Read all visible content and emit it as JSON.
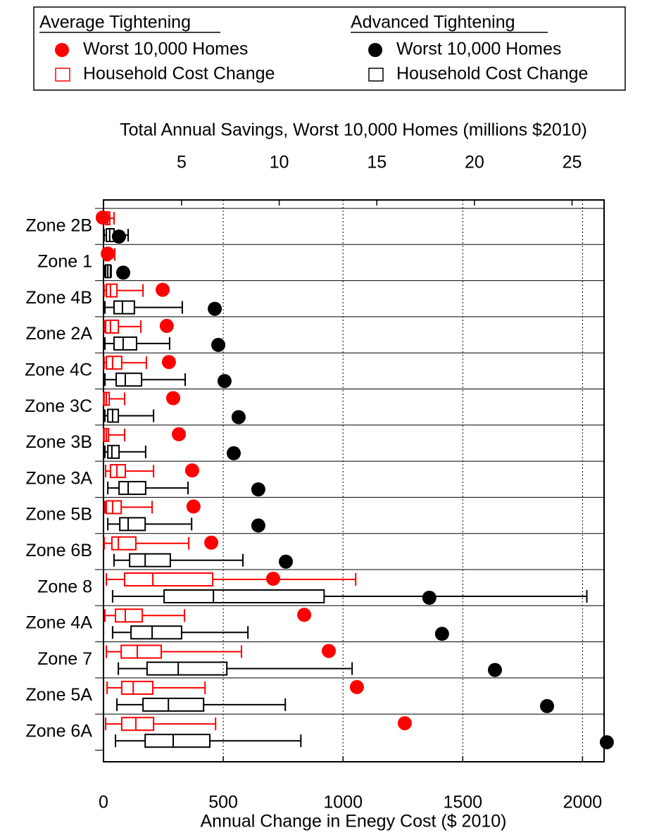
{
  "chart_data": {
    "type": "boxplot",
    "categories": [
      "Zone 2B",
      "Zone 1",
      "Zone 4B",
      "Zone 2A",
      "Zone 4C",
      "Zone 3C",
      "Zone 3B",
      "Zone 3A",
      "Zone 5B",
      "Zone 6B",
      "Zone 8",
      "Zone 4A",
      "Zone 7",
      "Zone 5A",
      "Zone 6A"
    ],
    "xlabel": "Annual Change in Enegy Cost ($ 2010)",
    "x2label": "Total Annual Savings, Worst 10,000 Homes (millions $2010)",
    "xlim": [
      0,
      2090
    ],
    "xticks": [
      0,
      500,
      1000,
      1500,
      2000
    ],
    "x2lim": [
      1,
      26.64
    ],
    "x2ticks": [
      5,
      10,
      15,
      20,
      25
    ],
    "grid": true,
    "groups": [
      {
        "name": "Average Tightening",
        "color": "#ff0000",
        "points": {
          "name": "Worst 10,000 Homes",
          "axis": "x2",
          "values": [
            0.96,
            1.22,
            4.03,
            4.24,
            4.35,
            4.57,
            4.86,
            5.54,
            5.61,
            6.52,
            9.69,
            11.28,
            12.54,
            13.98,
            16.43
          ]
        },
        "boxes": {
          "name": "Household Cost Change",
          "values": [
            [
              3,
              9,
              18,
              26,
              44
            ],
            [
              3,
              9,
              15,
              24,
              47
            ],
            [
              3,
              12,
              29,
              56,
              165
            ],
            [
              3,
              9,
              29,
              62,
              156
            ],
            [
              3,
              12,
              38,
              76,
              179
            ],
            [
              0,
              3,
              12,
              24,
              88
            ],
            [
              0,
              3,
              12,
              21,
              88
            ],
            [
              9,
              29,
              56,
              91,
              209
            ],
            [
              6,
              12,
              38,
              74,
              203
            ],
            [
              3,
              35,
              62,
              135,
              356
            ],
            [
              12,
              88,
              206,
              456,
              1053
            ],
            [
              6,
              50,
              91,
              162,
              338
            ],
            [
              12,
              74,
              141,
              241,
              576
            ],
            [
              15,
              76,
              124,
              206,
              424
            ],
            [
              9,
              76,
              135,
              209,
              468
            ]
          ]
        }
      },
      {
        "name": "Advanced Tightening",
        "color": "#000000",
        "points": {
          "name": "Worst 10,000 Homes",
          "axis": "x2",
          "values": [
            1.79,
            2.01,
            6.7,
            6.88,
            7.2,
            7.92,
            7.67,
            8.93,
            8.93,
            10.34,
            17.69,
            18.34,
            21.05,
            23.72,
            26.78
          ]
        },
        "boxes": {
          "name": "Household Cost Change",
          "values": [
            [
              3,
              12,
              26,
              44,
              103
            ],
            [
              3,
              9,
              18,
              29,
              32
            ],
            [
              6,
              44,
              79,
              129,
              329
            ],
            [
              6,
              44,
              82,
              138,
              276
            ],
            [
              6,
              53,
              91,
              159,
              341
            ],
            [
              6,
              18,
              38,
              62,
              209
            ],
            [
              6,
              18,
              35,
              65,
              176
            ],
            [
              18,
              65,
              103,
              176,
              353
            ],
            [
              18,
              68,
              103,
              174,
              368
            ],
            [
              44,
              109,
              174,
              279,
              582
            ],
            [
              38,
              253,
              459,
              921,
              2018
            ],
            [
              38,
              115,
              203,
              326,
              603
            ],
            [
              62,
              182,
              312,
              515,
              1038
            ],
            [
              56,
              165,
              271,
              418,
              759
            ],
            [
              50,
              174,
              291,
              444,
              824
            ]
          ]
        }
      }
    ]
  }
}
